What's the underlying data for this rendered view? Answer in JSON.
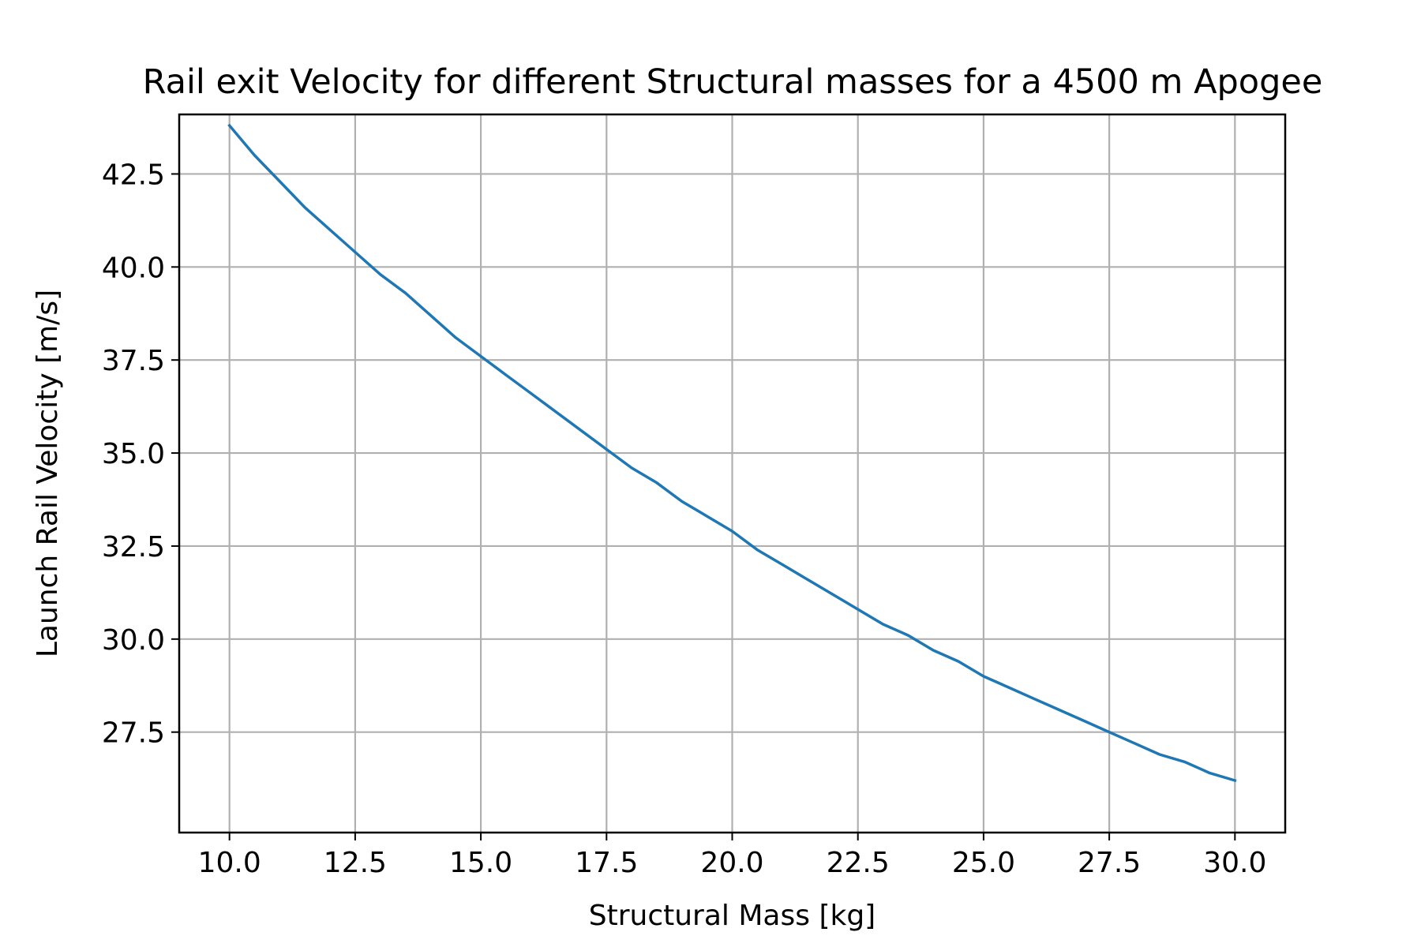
{
  "chart_data": {
    "type": "line",
    "title": "Rail exit Velocity for different Structural masses for a 4500 m Apogee",
    "xlabel": "Structural Mass [kg]",
    "ylabel": "Launch Rail Velocity [m/s]",
    "xlim": [
      9.0,
      31.0
    ],
    "ylim": [
      24.8,
      44.1
    ],
    "x_ticks": [
      10.0,
      12.5,
      15.0,
      17.5,
      20.0,
      22.5,
      25.0,
      27.5,
      30.0
    ],
    "x_tick_labels": [
      "10.0",
      "12.5",
      "15.0",
      "17.5",
      "20.0",
      "22.5",
      "25.0",
      "27.5",
      "30.0"
    ],
    "y_ticks": [
      27.5,
      30.0,
      32.5,
      35.0,
      37.5,
      40.0,
      42.5
    ],
    "y_tick_labels": [
      "27.5",
      "30.0",
      "32.5",
      "35.0",
      "37.5",
      "40.0",
      "42.5"
    ],
    "grid": true,
    "line_color": "#1f77b4",
    "series": [
      {
        "x": [
          10.0,
          10.5,
          11.0,
          11.5,
          12.0,
          12.5,
          13.0,
          13.5,
          14.0,
          14.5,
          15.0,
          15.5,
          16.0,
          16.5,
          17.0,
          17.5,
          18.0,
          18.5,
          19.0,
          19.5,
          20.0,
          20.5,
          21.0,
          21.5,
          22.0,
          22.5,
          23.0,
          23.5,
          24.0,
          24.5,
          25.0,
          25.5,
          26.0,
          26.5,
          27.0,
          27.5,
          28.0,
          28.5,
          29.0,
          29.5,
          30.0
        ],
        "y": [
          43.8,
          43.0,
          42.3,
          41.6,
          41.0,
          40.4,
          39.8,
          39.3,
          38.7,
          38.1,
          37.6,
          37.1,
          36.6,
          36.1,
          35.6,
          35.1,
          34.6,
          34.2,
          33.7,
          33.3,
          32.9,
          32.4,
          32.0,
          31.6,
          31.2,
          30.8,
          30.4,
          30.1,
          29.7,
          29.4,
          29.0,
          28.7,
          28.4,
          28.1,
          27.8,
          27.5,
          27.2,
          26.9,
          26.7,
          26.4,
          26.2
        ]
      }
    ]
  }
}
